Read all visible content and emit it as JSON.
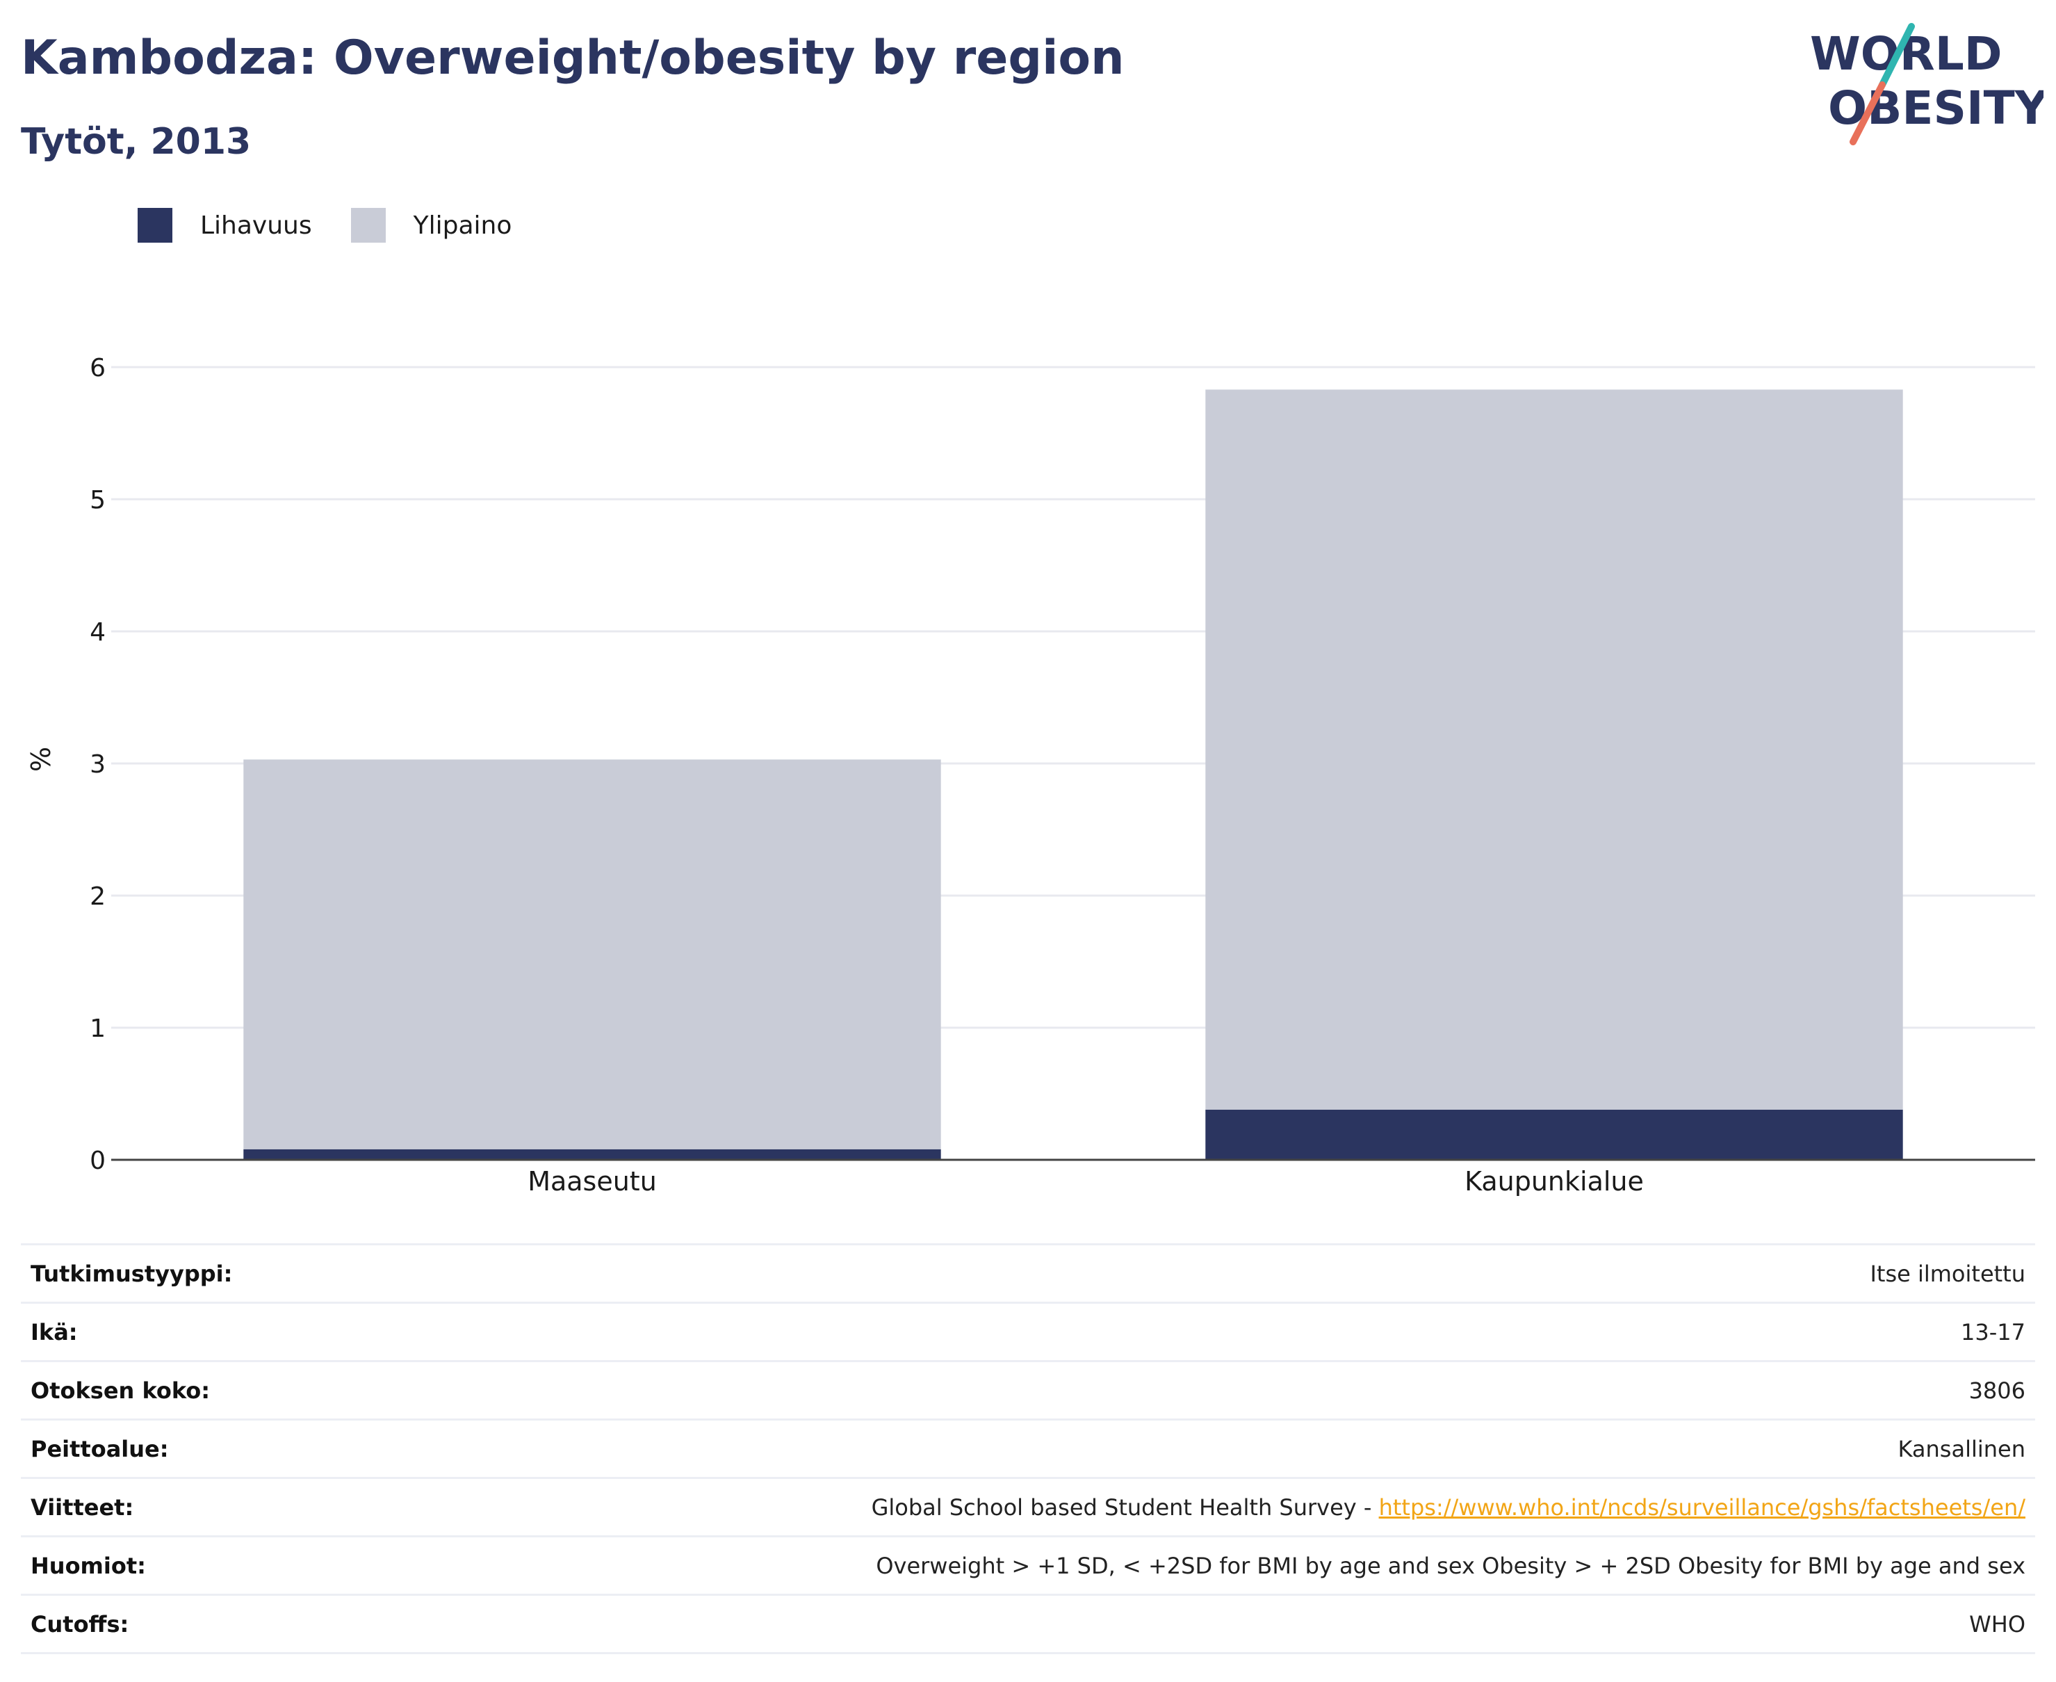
{
  "header": {
    "title": "Kambodza: Overweight/obesity by region",
    "subtitle": "Tytöt, 2013"
  },
  "logo": {
    "line1": "WORLD",
    "line2": "OBESITY"
  },
  "legend": [
    {
      "label": "Lihavuus",
      "color": "#2b3560"
    },
    {
      "label": "Ylipaino",
      "color": "#c9ccd7"
    }
  ],
  "chart_data": {
    "type": "bar",
    "stacked": true,
    "categories": [
      "Maaseutu",
      "Kaupunkialue"
    ],
    "series": [
      {
        "name": "Lihavuus",
        "values": [
          0.08,
          0.38
        ],
        "color": "#2b3560"
      },
      {
        "name": "Ylipaino",
        "values": [
          2.95,
          5.45
        ],
        "color": "#c9ccd7"
      }
    ],
    "ylabel": "%",
    "ylim": [
      0,
      6
    ],
    "yticks": [
      "0",
      "1",
      "2",
      "3",
      "4",
      "5",
      "6"
    ],
    "grid": true,
    "legend_position": "top-left"
  },
  "meta": [
    {
      "key": "Tutkimustyyppi:",
      "value": "Itse ilmoitettu"
    },
    {
      "key": "Ikä:",
      "value": "13-17"
    },
    {
      "key": "Otoksen koko:",
      "value": "3806"
    },
    {
      "key": "Peittoalue:",
      "value": "Kansallinen"
    },
    {
      "key": "Viitteet:",
      "value": "Global School based Student Health Survey - ",
      "link": "https://www.who.int/ncds/surveillance/gshs/factsheets/en/"
    },
    {
      "key": "Huomiot:",
      "value": "Overweight > +1 SD, < +2SD for BMI by age and sex Obesity > + 2SD Obesity for BMI by age and sex"
    },
    {
      "key": "Cutoffs:",
      "value": "WHO"
    }
  ]
}
